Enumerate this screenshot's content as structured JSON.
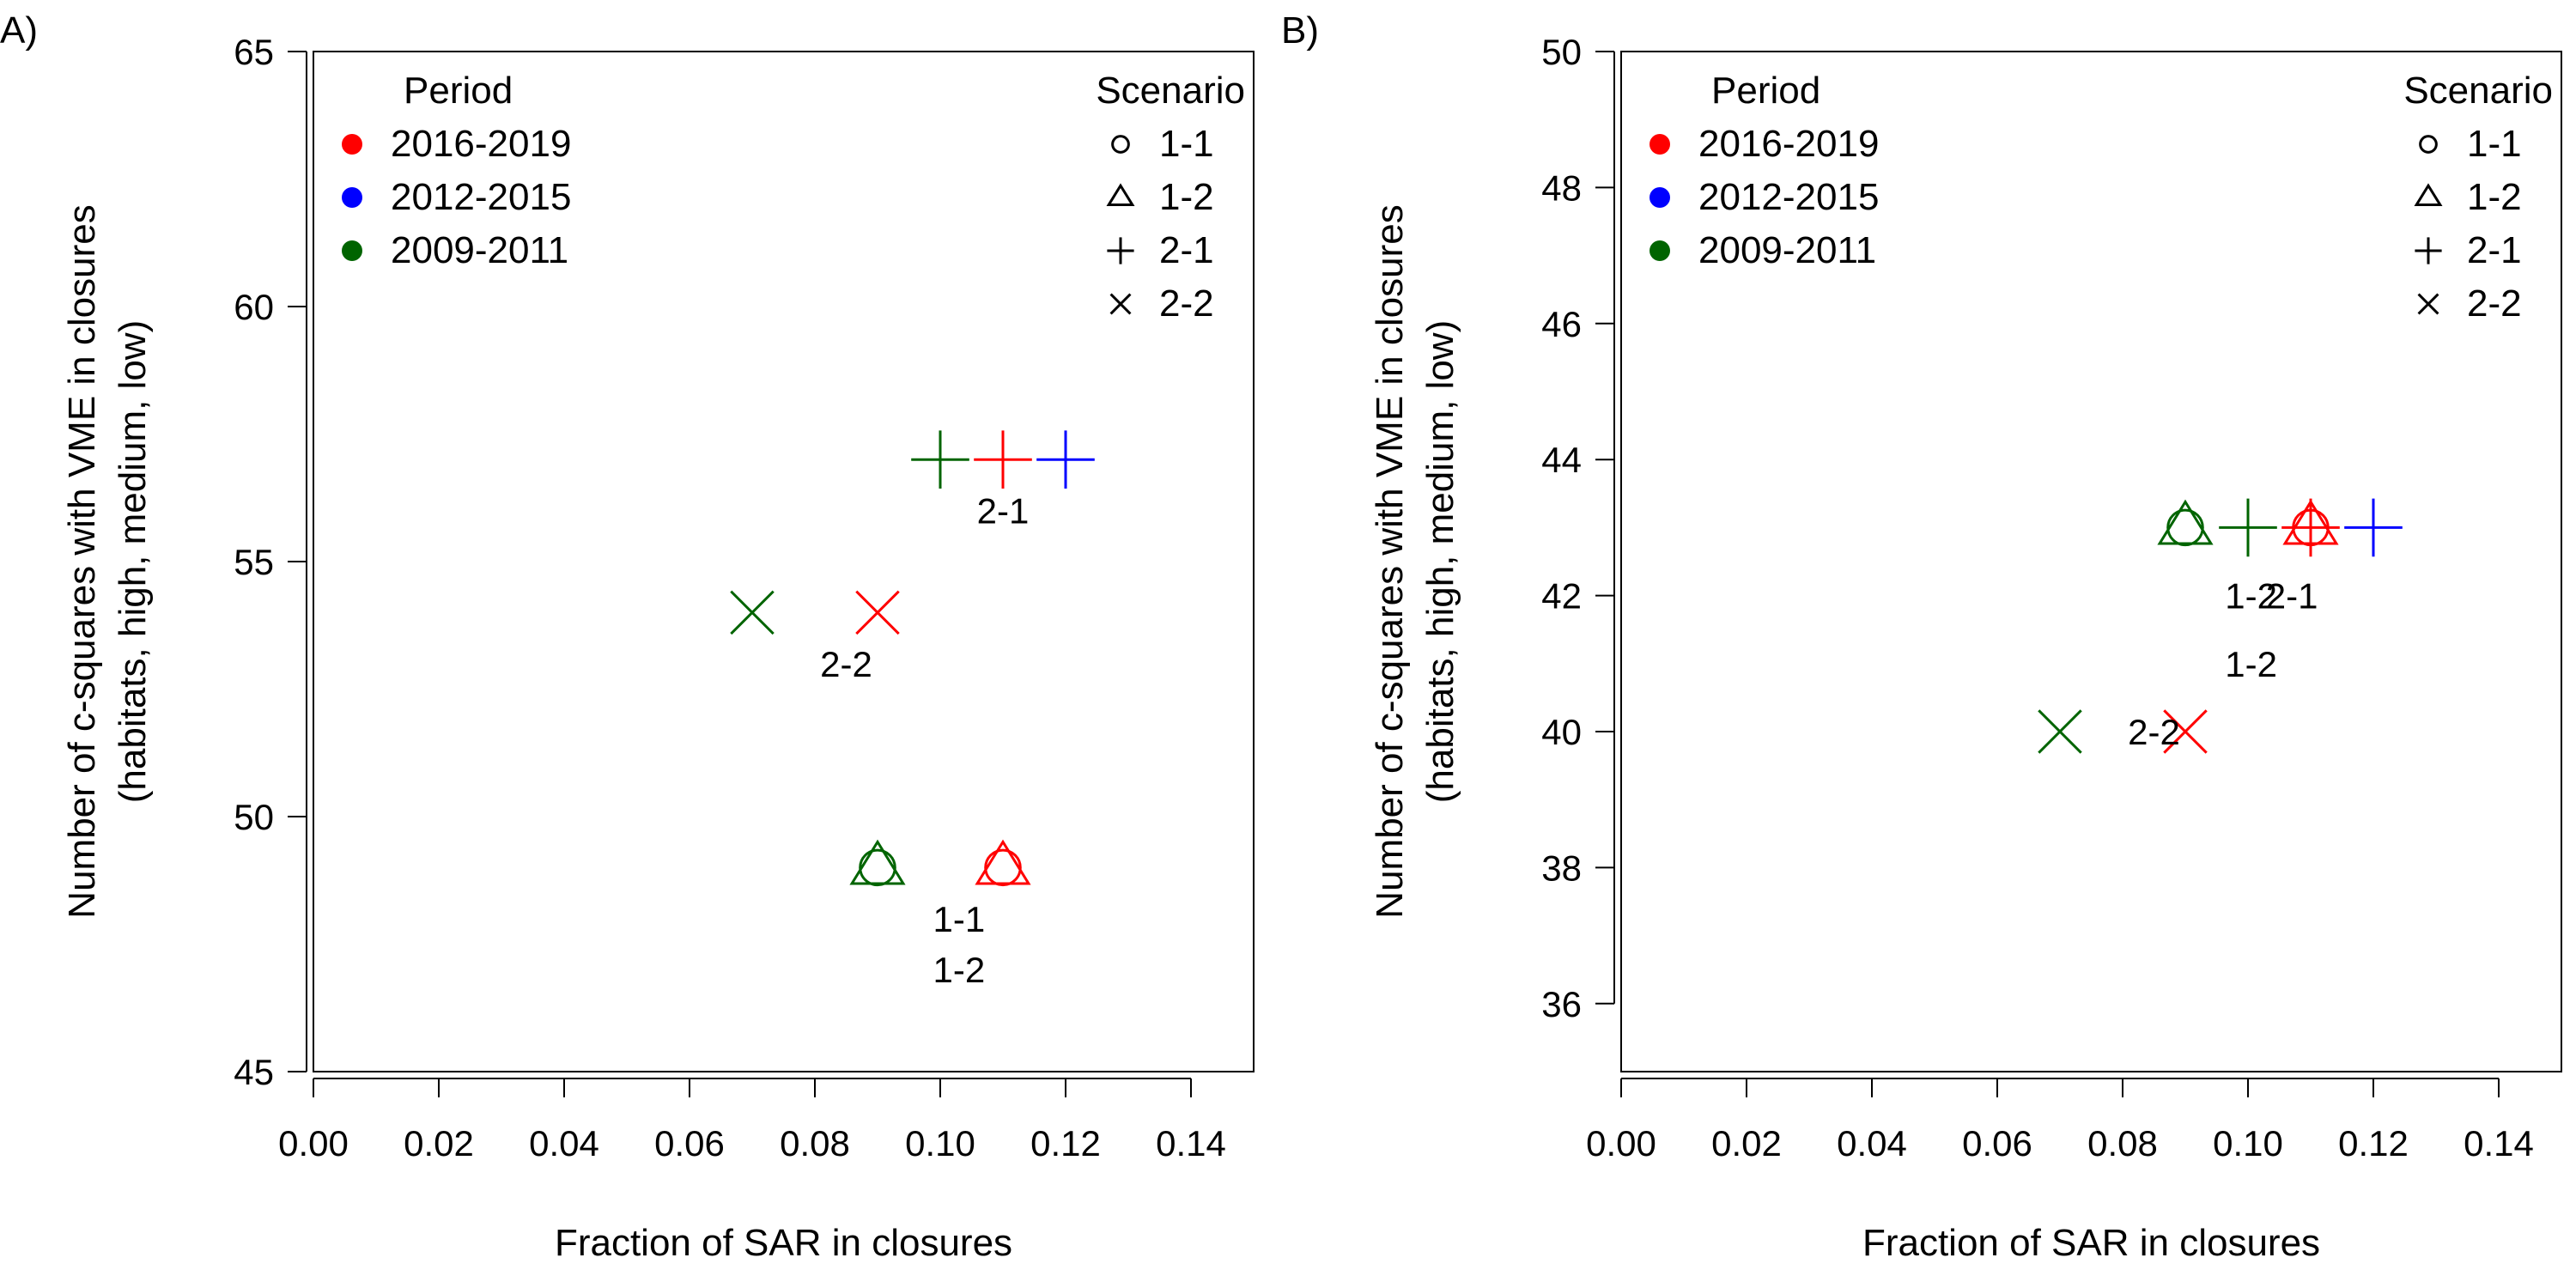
{
  "chart_data": [
    {
      "panel_label": "A)",
      "type": "scatter",
      "xlabel": "Fraction of SAR in closures",
      "ylabel_lines": [
        "Number of c-squares with VME in closures",
        "(habitats, high, medium, low)"
      ],
      "xlim": [
        0,
        0.15
      ],
      "ylim": [
        45,
        65
      ],
      "x_ticks": [
        0.0,
        0.02,
        0.04,
        0.06,
        0.08,
        0.1,
        0.12,
        0.14
      ],
      "x_tick_labels": [
        "0.00",
        "0.02",
        "0.04",
        "0.06",
        "0.08",
        "0.10",
        "0.12",
        "0.14"
      ],
      "y_ticks": [
        45,
        50,
        55,
        60,
        65
      ],
      "y_tick_labels": [
        "45",
        "50",
        "55",
        "60",
        "65"
      ],
      "grid": false,
      "legend_period": {
        "title": "Period",
        "placement": "top-left",
        "entries": [
          {
            "label": "2016-2019",
            "color": "#ff0000"
          },
          {
            "label": "2012-2015",
            "color": "#0000ff"
          },
          {
            "label": "2009-2011",
            "color": "#006400"
          }
        ]
      },
      "legend_scenario": {
        "title": "Scenario",
        "placement": "top-right",
        "entries": [
          {
            "label": "1-1",
            "symbol": "circle"
          },
          {
            "label": "1-2",
            "symbol": "triangle"
          },
          {
            "label": "2-1",
            "symbol": "plus"
          },
          {
            "label": "2-2",
            "symbol": "cross"
          }
        ]
      },
      "points": [
        {
          "period": "2016-2019",
          "scenario": "1-1",
          "x": 0.11,
          "y": 49
        },
        {
          "period": "2016-2019",
          "scenario": "1-2",
          "x": 0.11,
          "y": 49
        },
        {
          "period": "2016-2019",
          "scenario": "2-1",
          "x": 0.11,
          "y": 57
        },
        {
          "period": "2016-2019",
          "scenario": "2-2",
          "x": 0.09,
          "y": 54
        },
        {
          "period": "2012-2015",
          "scenario": "2-1",
          "x": 0.12,
          "y": 57
        },
        {
          "period": "2009-2011",
          "scenario": "1-1",
          "x": 0.09,
          "y": 49
        },
        {
          "period": "2009-2011",
          "scenario": "1-2",
          "x": 0.09,
          "y": 49
        },
        {
          "period": "2009-2011",
          "scenario": "2-1",
          "x": 0.1,
          "y": 57
        },
        {
          "period": "2009-2011",
          "scenario": "2-2",
          "x": 0.07,
          "y": 54
        }
      ],
      "annotations": [
        {
          "text": "2-1",
          "x": 0.11,
          "y": 56.0
        },
        {
          "text": "2-2",
          "x": 0.085,
          "y": 53.0
        },
        {
          "text": "1-1",
          "x": 0.103,
          "y": 48.0
        },
        {
          "text": "1-2",
          "x": 0.103,
          "y": 47.0
        }
      ]
    },
    {
      "panel_label": "B)",
      "type": "scatter",
      "xlabel": "Fraction of SAR in closures",
      "ylabel_lines": [
        "Number of c-squares with VME in closures",
        "(habitats, high, medium, low)"
      ],
      "xlim": [
        0,
        0.15
      ],
      "ylim": [
        35,
        50
      ],
      "x_ticks": [
        0.0,
        0.02,
        0.04,
        0.06,
        0.08,
        0.1,
        0.12,
        0.14
      ],
      "x_tick_labels": [
        "0.00",
        "0.02",
        "0.04",
        "0.06",
        "0.08",
        "0.10",
        "0.12",
        "0.14"
      ],
      "y_ticks": [
        36,
        38,
        40,
        42,
        44,
        46,
        48,
        50
      ],
      "y_tick_labels": [
        "36",
        "38",
        "40",
        "42",
        "44",
        "46",
        "48",
        "50"
      ],
      "grid": false,
      "legend_period": {
        "title": "Period",
        "placement": "top-left",
        "entries": [
          {
            "label": "2016-2019",
            "color": "#ff0000"
          },
          {
            "label": "2012-2015",
            "color": "#0000ff"
          },
          {
            "label": "2009-2011",
            "color": "#006400"
          }
        ]
      },
      "legend_scenario": {
        "title": "Scenario",
        "placement": "top-right",
        "entries": [
          {
            "label": "1-1",
            "symbol": "circle"
          },
          {
            "label": "1-2",
            "symbol": "triangle"
          },
          {
            "label": "2-1",
            "symbol": "plus"
          },
          {
            "label": "2-2",
            "symbol": "cross"
          }
        ]
      },
      "points": [
        {
          "period": "2016-2019",
          "scenario": "1-1",
          "x": 0.11,
          "y": 43
        },
        {
          "period": "2016-2019",
          "scenario": "1-2",
          "x": 0.11,
          "y": 43
        },
        {
          "period": "2016-2019",
          "scenario": "2-1",
          "x": 0.11,
          "y": 43
        },
        {
          "period": "2016-2019",
          "scenario": "2-2",
          "x": 0.09,
          "y": 40
        },
        {
          "period": "2012-2015",
          "scenario": "2-1",
          "x": 0.12,
          "y": 43
        },
        {
          "period": "2009-2011",
          "scenario": "1-1",
          "x": 0.09,
          "y": 43
        },
        {
          "period": "2009-2011",
          "scenario": "1-2",
          "x": 0.09,
          "y": 43
        },
        {
          "period": "2009-2011",
          "scenario": "2-1",
          "x": 0.1,
          "y": 43
        },
        {
          "period": "2009-2011",
          "scenario": "2-2",
          "x": 0.07,
          "y": 40
        }
      ],
      "annotations": [
        {
          "text": "1-2",
          "x": 0.1005,
          "y": 42.0
        },
        {
          "text": "2-1",
          "x": 0.107,
          "y": 42.0
        },
        {
          "text": "1-2",
          "x": 0.1005,
          "y": 41.0
        },
        {
          "text": "2-2",
          "x": 0.085,
          "y": 40.0
        }
      ]
    }
  ]
}
